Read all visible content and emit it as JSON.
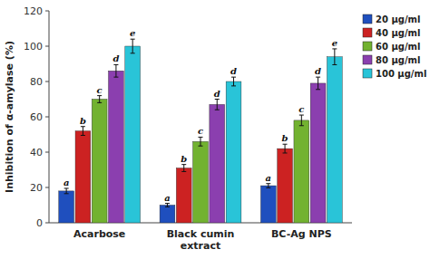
{
  "chart_data": {
    "type": "bar",
    "categories": [
      "Acarbose",
      "Black cumin\nextract",
      "BC-Ag NPS"
    ],
    "series": [
      {
        "name": "20 μg/ml",
        "color": "#1F4FBE",
        "values": [
          18,
          10,
          21
        ],
        "errors": [
          1.5,
          1.0,
          1.2
        ],
        "letters": [
          "a",
          "a",
          "a"
        ]
      },
      {
        "name": "40 μg/ml",
        "color": "#CC2222",
        "values": [
          52,
          31,
          42
        ],
        "errors": [
          2.5,
          2.0,
          2.5
        ],
        "letters": [
          "b",
          "b",
          "b"
        ]
      },
      {
        "name": "60 μg/ml",
        "color": "#72B230",
        "values": [
          70,
          46,
          58
        ],
        "errors": [
          2.0,
          2.5,
          3.0
        ],
        "letters": [
          "c",
          "c",
          "c"
        ]
      },
      {
        "name": "80 μg/ml",
        "color": "#8B3FAF",
        "values": [
          86,
          67,
          79
        ],
        "errors": [
          3.5,
          3.0,
          3.5
        ],
        "letters": [
          "d",
          "d",
          "d"
        ]
      },
      {
        "name": "100 μg/ml",
        "color": "#29C4D8",
        "values": [
          100,
          80,
          94
        ],
        "errors": [
          4.0,
          2.5,
          4.5
        ],
        "letters": [
          "e",
          "d",
          "e"
        ]
      }
    ],
    "ylabel": "Inhibition of α-amylase (%)",
    "ylim": [
      0,
      120
    ],
    "yticks": [
      0,
      20,
      40,
      60,
      80,
      100,
      120
    ],
    "grid": false,
    "legend": "upper right"
  }
}
